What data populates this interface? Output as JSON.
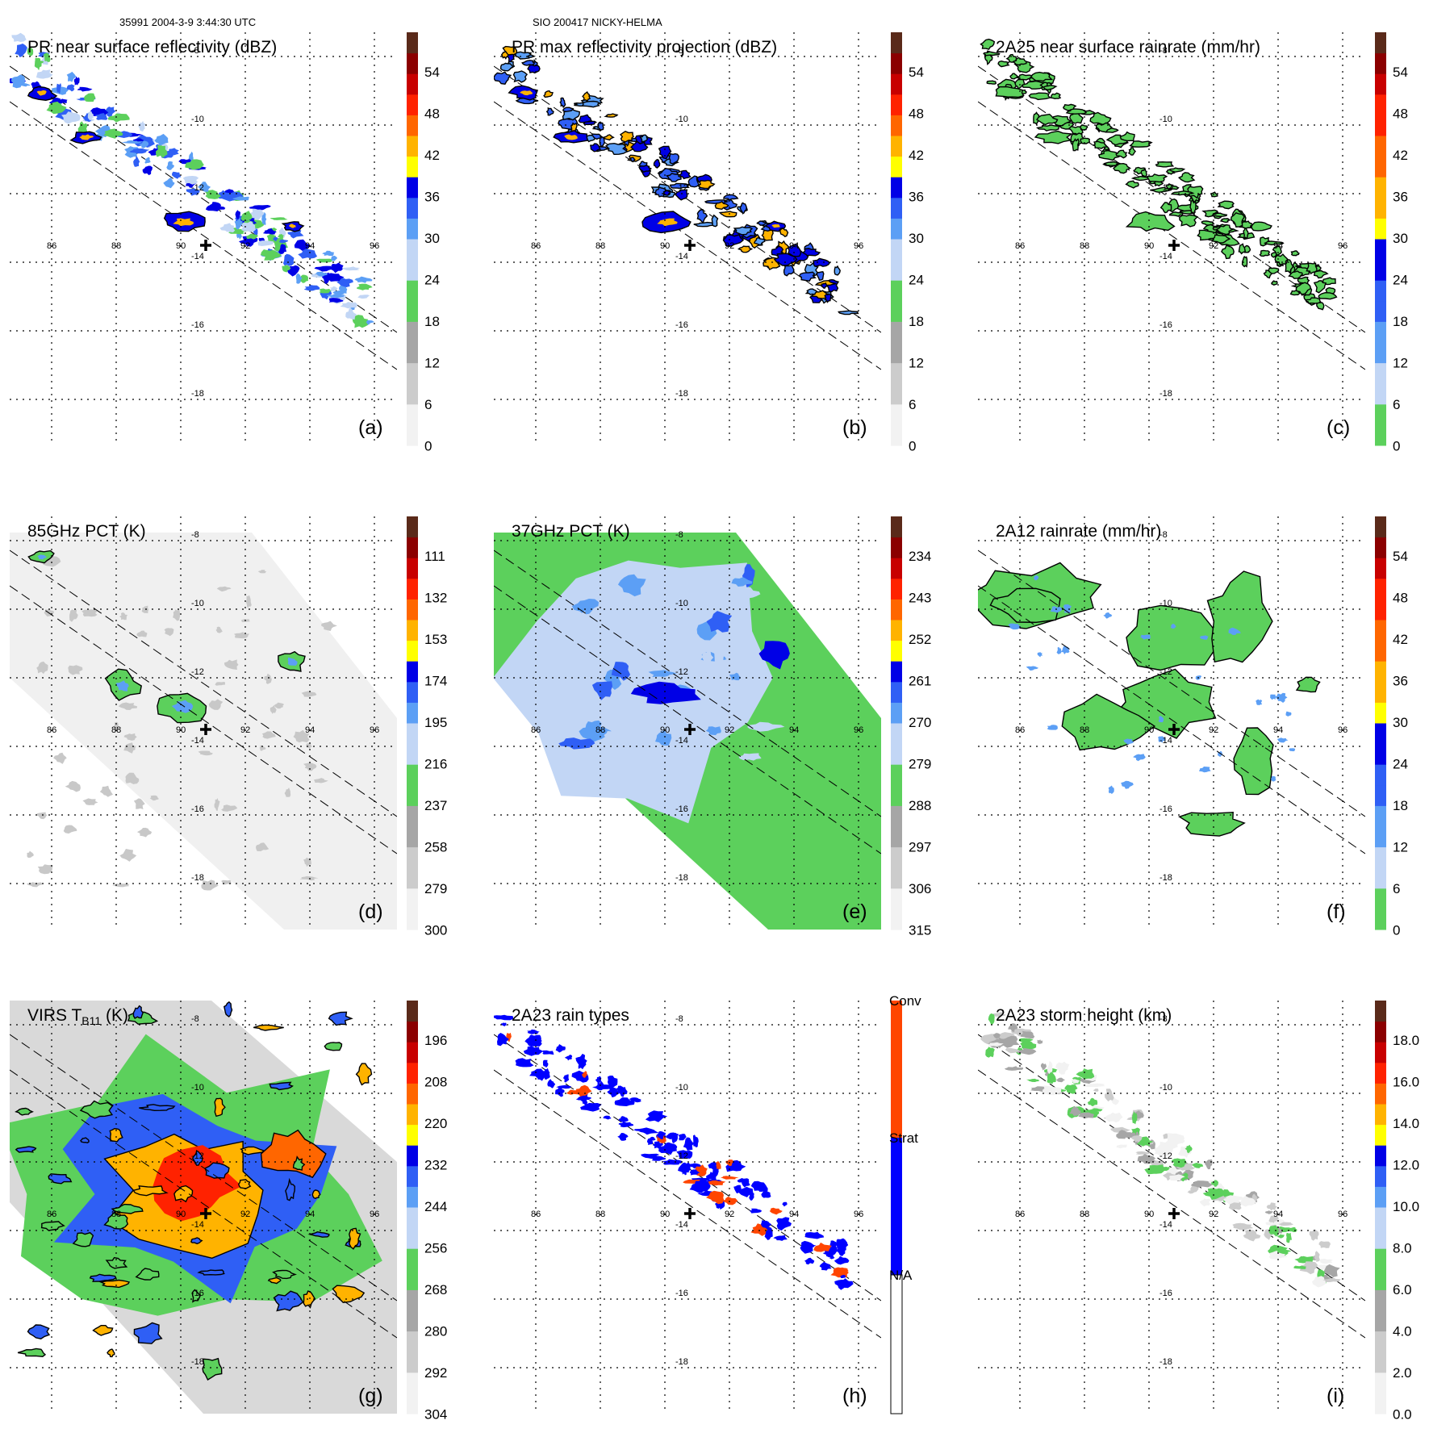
{
  "header": {
    "left": "35991 2004-3-9 3:44:30 UTC",
    "center": "SIO 200417 NICKY-HELMA"
  },
  "lon_labels": [
    "86",
    "88",
    "90",
    "92",
    "94",
    "96"
  ],
  "lat_labels": [
    "-8",
    "-10",
    "-12",
    "-14",
    "-16",
    "-18"
  ],
  "colors": {
    "scale": [
      "#f2f2f2",
      "#cccccc",
      "#a6a6a6",
      "#8cdf8c",
      "#5cd05c",
      "#c2d6f5",
      "#5c9ff5",
      "#2f5ff5",
      "#0000e6",
      "#ffff00",
      "#ffb300",
      "#ff6600",
      "#ff2200",
      "#c80000",
      "#8b0000",
      "#5a2a1a"
    ],
    "raintypes": [
      "#ffffff",
      "#0000ff",
      "#ff4500"
    ]
  },
  "panels": [
    {
      "id": "a",
      "title": "PR near surface reflectivity (dBZ)",
      "label": "(a)",
      "type": "reflectivity",
      "colorbar": {
        "ticks": [
          "54",
          "48",
          "42",
          "36",
          "30",
          "24",
          "18",
          "12",
          "6",
          "0"
        ],
        "scale": "dbz"
      }
    },
    {
      "id": "b",
      "title": "PR max reflectivity projection (dBZ)",
      "label": "(b)",
      "type": "maxproj",
      "colorbar": {
        "ticks": [
          "54",
          "48",
          "42",
          "36",
          "30",
          "24",
          "18",
          "12",
          "6",
          "0"
        ],
        "scale": "dbz"
      }
    },
    {
      "id": "c",
      "title": "2A25 near surface rainrate (mm/hr)",
      "label": "(c)",
      "type": "rainrate",
      "colorbar": {
        "ticks": [
          "54",
          "48",
          "42",
          "36",
          "30",
          "24",
          "18",
          "12",
          "6",
          "0"
        ],
        "scale": "rain"
      }
    },
    {
      "id": "d",
      "title": "85GHz PCT (K)",
      "label": "(d)",
      "type": "pct85",
      "colorbar": {
        "ticks": [
          "111",
          "132",
          "153",
          "174",
          "195",
          "216",
          "237",
          "258",
          "279",
          "300"
        ],
        "scale": "dbz"
      }
    },
    {
      "id": "e",
      "title": "37GHz PCT (K)",
      "label": "(e)",
      "type": "pct37",
      "colorbar": {
        "ticks": [
          "234",
          "243",
          "252",
          "261",
          "270",
          "279",
          "288",
          "297",
          "306",
          "315"
        ],
        "scale": "dbz"
      }
    },
    {
      "id": "f",
      "title": "2A12 rainrate (mm/hr)",
      "label": "(f)",
      "type": "rain2a12",
      "colorbar": {
        "ticks": [
          "54",
          "48",
          "42",
          "36",
          "30",
          "24",
          "18",
          "12",
          "6",
          "0"
        ],
        "scale": "rain"
      }
    },
    {
      "id": "g",
      "title": "VIRS T",
      "title_sub": "B11",
      "title_suffix": " (K)",
      "label": "(g)",
      "type": "virs",
      "colorbar": {
        "ticks": [
          "196",
          "208",
          "220",
          "232",
          "244",
          "256",
          "268",
          "280",
          "292",
          "304"
        ],
        "scale": "dbz"
      }
    },
    {
      "id": "h",
      "title": "2A23 rain types",
      "label": "(h)",
      "type": "raintype",
      "colorbar": {
        "ticks": [
          "Conv",
          "Strat",
          "N/A"
        ],
        "scale": "types"
      }
    },
    {
      "id": "i",
      "title": "2A23 storm height (km)",
      "label": "(i)",
      "type": "height",
      "colorbar": {
        "ticks": [
          "18.0",
          "16.0",
          "14.0",
          "12.0",
          "10.0",
          "8.0",
          "6.0",
          "4.0",
          "2.0",
          "0.0"
        ],
        "scale": "height"
      }
    }
  ]
}
